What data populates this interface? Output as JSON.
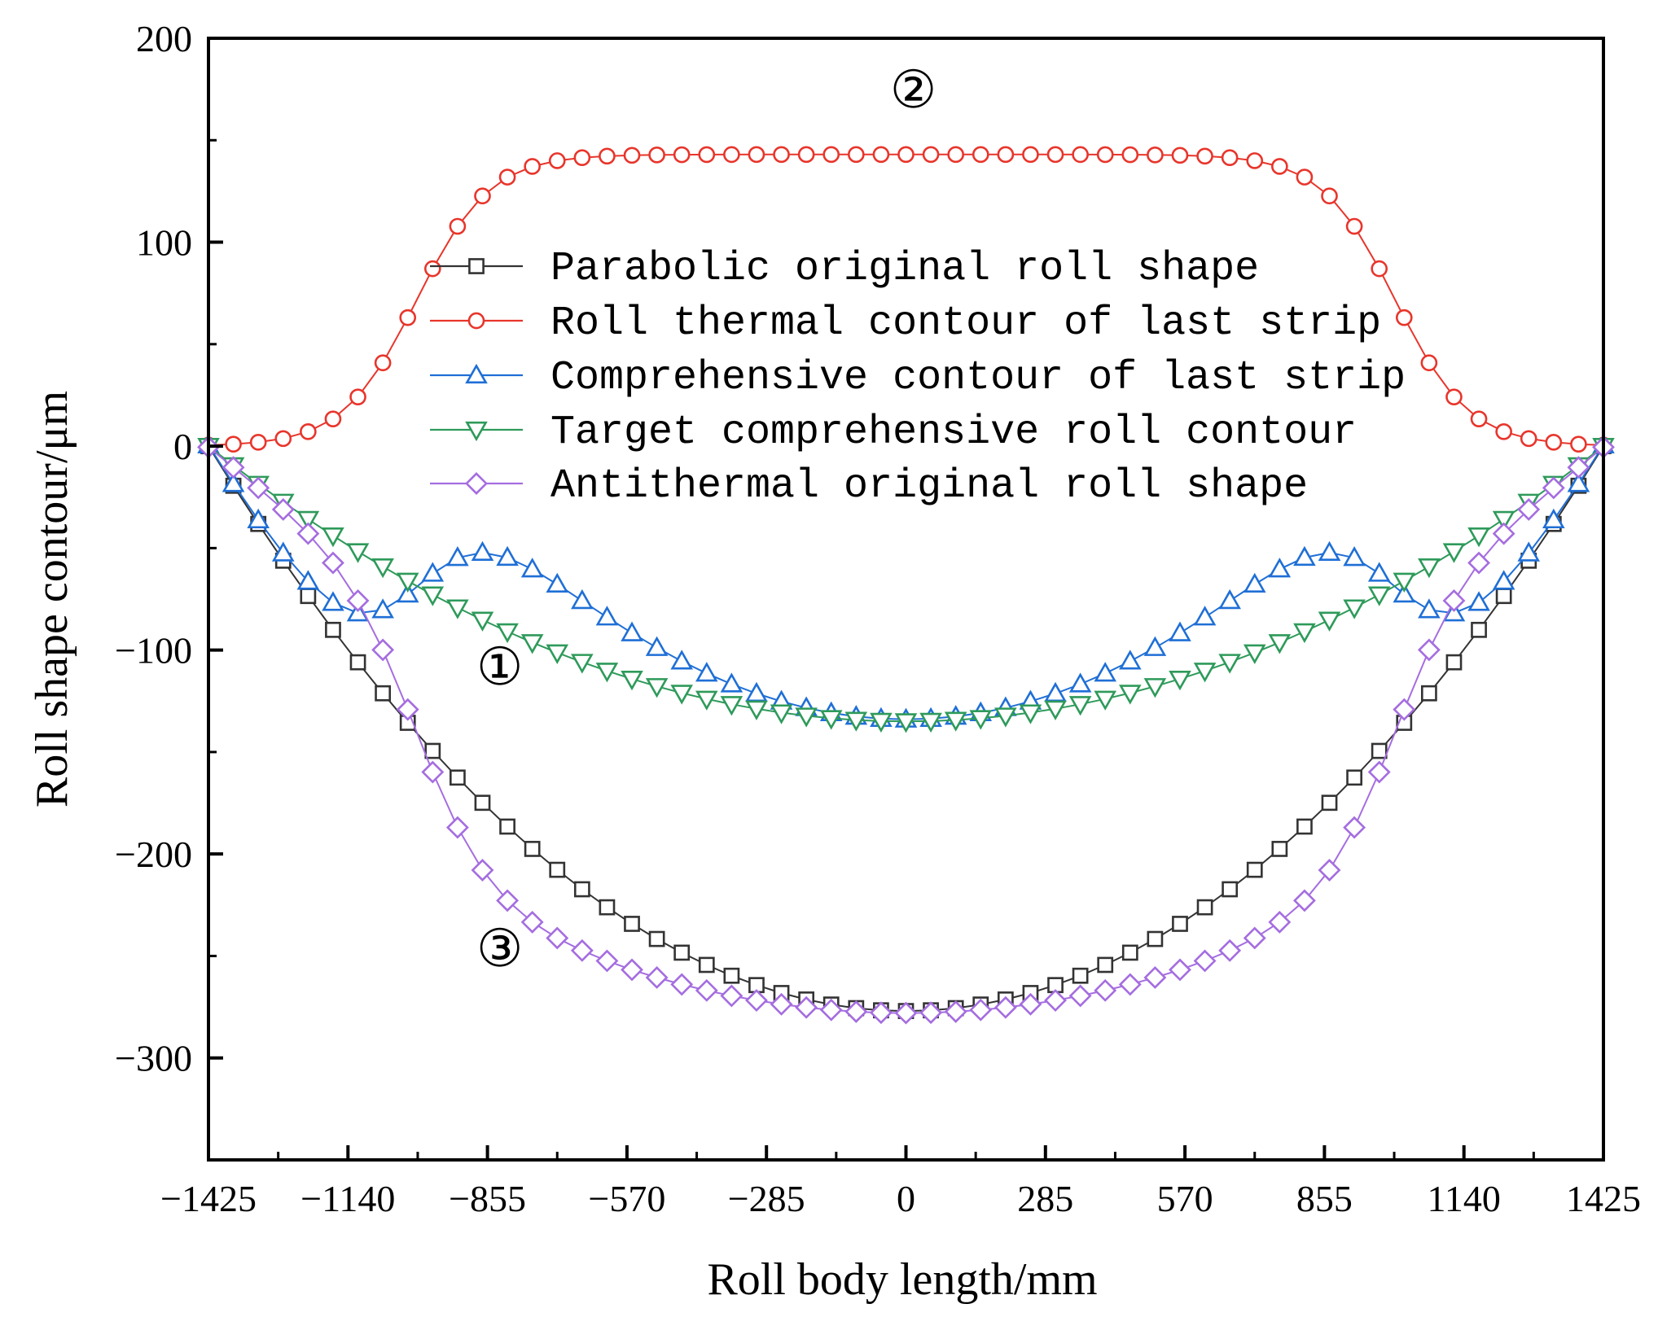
{
  "chart_data": {
    "type": "line",
    "title": "",
    "xlabel": "Roll body length/mm",
    "ylabel": "Roll shape contour/μm",
    "xlim": [
      -1425,
      1425
    ],
    "ylim": [
      -350,
      200
    ],
    "xticks": [
      -1425,
      -1140,
      -855,
      -570,
      -285,
      0,
      285,
      570,
      855,
      1140,
      1425
    ],
    "yticks": [
      200,
      100,
      0,
      -100,
      -200,
      -300
    ],
    "xtick_labels": [
      "−1425",
      "−1140",
      "−855",
      "−570",
      "−285",
      "0",
      "285",
      "570",
      "855",
      "1140",
      "1425"
    ],
    "ytick_labels": [
      "200",
      "100",
      "0",
      "−100",
      "−200",
      "−300"
    ],
    "legend_position": "center",
    "grid": false,
    "annotations": [
      {
        "text": "①",
        "x": -830,
        "y": -117
      },
      {
        "text": "②",
        "x": 15,
        "y": 166
      },
      {
        "text": "③",
        "x": -830,
        "y": -255
      }
    ],
    "series": [
      {
        "name": "Parabolic original roll shape",
        "color": "#333333",
        "marker": "square",
        "x_range": [
          -1425,
          1425
        ],
        "n_points": 57,
        "model": "parabola",
        "depth": 277
      },
      {
        "name": "Roll thermal contour of last strip",
        "color": "#e8352b",
        "marker": "circle",
        "x_range": [
          -1425,
          1425
        ],
        "n_points": 57,
        "model": "plateau",
        "plateau": 143,
        "edge_center": 1000,
        "edge_width": 75,
        "edge_floor": 0
      },
      {
        "name": "Comprehensive contour of last strip",
        "color": "#1f6fd6",
        "marker": "triangle-up",
        "x_range": [
          -1425,
          1425
        ],
        "n_points": 57,
        "model": "sum",
        "of": [
          0,
          1
        ]
      },
      {
        "name": "Target comprehensive roll contour",
        "color": "#2e9a5a",
        "marker": "triangle-down",
        "x_range": [
          -1425,
          1425
        ],
        "n_points": 57,
        "model": "parabola",
        "depth": 135
      },
      {
        "name": "Antithermal original roll shape",
        "color": "#a56de0",
        "marker": "diamond",
        "x_range": [
          -1425,
          1425
        ],
        "n_points": 57,
        "model": "difference",
        "of": [
          3,
          1
        ]
      }
    ]
  }
}
